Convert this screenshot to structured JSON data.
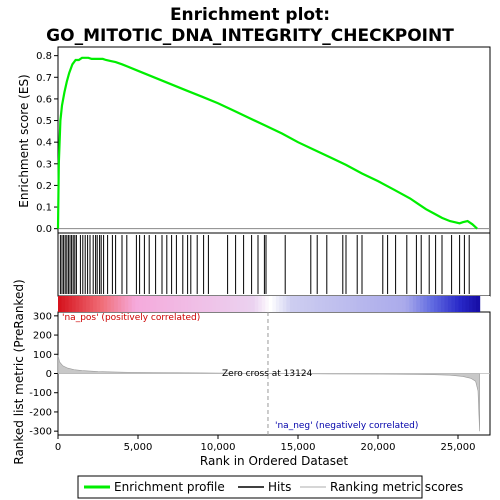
{
  "chart_data": {
    "type": "line",
    "title_line1": "Enrichment plot:",
    "title_line2": "GO_MITOTIC_DNA_INTEGRITY_CHECKPOINT",
    "ylabel_top": "Enrichment score (ES)",
    "ylabel_bottom": "Ranked list metric (PreRanked)",
    "xlabel": "Rank in Ordered Dataset",
    "xlim": [
      0,
      27000
    ],
    "x_ticks": [
      "0",
      "5,000",
      "10,000",
      "15,000",
      "20,000",
      "25,000"
    ],
    "x_tick_values": [
      0,
      5000,
      10000,
      15000,
      20000,
      25000
    ],
    "es_ylim": [
      -0.02,
      0.84
    ],
    "es_ticks": [
      "0.0",
      "0.1",
      "0.2",
      "0.3",
      "0.4",
      "0.5",
      "0.6",
      "0.7",
      "0.8"
    ],
    "es_tick_values": [
      0,
      0.1,
      0.2,
      0.3,
      0.4,
      0.5,
      0.6,
      0.7,
      0.8
    ],
    "metric_ylim": [
      -320,
      320
    ],
    "metric_ticks": [
      "300",
      "200",
      "100",
      "0",
      "-100",
      "-200",
      "-300"
    ],
    "metric_tick_values": [
      300,
      200,
      100,
      0,
      -100,
      -200,
      -300
    ],
    "series": [
      {
        "name": "Enrichment profile",
        "color": "#00ee00",
        "x": [
          0,
          50,
          150,
          250,
          400,
          550,
          700,
          900,
          1100,
          1300,
          1500,
          1700,
          1900,
          2100,
          2300,
          2500,
          2800,
          3000,
          3300,
          3600,
          4000,
          5000,
          6000,
          7000,
          8000,
          9000,
          10000,
          11000,
          12000,
          13000,
          14000,
          15000,
          16000,
          17000,
          18000,
          19000,
          20000,
          21000,
          22000,
          22500,
          23000,
          23500,
          24000,
          24500,
          24800,
          25100,
          25300,
          25600,
          25900,
          26200
        ],
        "y": [
          0.0,
          0.3,
          0.5,
          0.57,
          0.63,
          0.68,
          0.72,
          0.76,
          0.78,
          0.78,
          0.79,
          0.79,
          0.79,
          0.785,
          0.785,
          0.785,
          0.785,
          0.78,
          0.775,
          0.77,
          0.76,
          0.73,
          0.7,
          0.67,
          0.64,
          0.61,
          0.58,
          0.545,
          0.51,
          0.475,
          0.44,
          0.4,
          0.365,
          0.33,
          0.295,
          0.255,
          0.22,
          0.18,
          0.14,
          0.115,
          0.09,
          0.07,
          0.05,
          0.035,
          0.03,
          0.025,
          0.03,
          0.035,
          0.02,
          0.0
        ]
      }
    ],
    "hits": [
      150,
      250,
      350,
      450,
      550,
      650,
      750,
      850,
      950,
      1050,
      1150,
      1400,
      1550,
      1700,
      1850,
      2000,
      2200,
      2350,
      2450,
      2600,
      2700,
      2850,
      3100,
      3400,
      3600,
      4000,
      4300,
      4900,
      5100,
      5400,
      5700,
      6100,
      6500,
      6800,
      7100,
      7400,
      7800,
      8100,
      8300,
      8700,
      9100,
      9400,
      10600,
      11100,
      11600,
      12100,
      12500,
      12900,
      13000,
      14200,
      15800,
      16200,
      16800,
      17800,
      18000,
      18700,
      19000,
      20300,
      20600,
      21100,
      21800,
      22400,
      22700,
      23200,
      23600,
      24000,
      24600,
      25100,
      25400,
      25700
    ],
    "metric": {
      "x": [
        0,
        100,
        300,
        600,
        1000,
        1500,
        2500,
        4000,
        6000,
        9000,
        13124,
        17000,
        20000,
        22000,
        23500,
        24500,
        25300,
        25800,
        26100,
        26250,
        26350
      ],
      "y": [
        95,
        60,
        40,
        28,
        20,
        15,
        10,
        7,
        5,
        3,
        0,
        -2,
        -3,
        -4,
        -6,
        -9,
        -15,
        -25,
        -40,
        -90,
        -300
      ]
    },
    "annotations": {
      "na_pos": "'na_pos' (positively correlated)",
      "zero_cross": "Zero cross at 13124",
      "na_neg": "'na_neg' (negatively correlated)"
    },
    "zero_cross_rank": 13124,
    "legend": [
      "Enrichment profile",
      "Hits",
      "Ranking metric scores"
    ],
    "legend_placement": "bottom",
    "grid": false,
    "colors": {
      "profile": "#00ee00",
      "pos_label": "#cc0000",
      "neg_label": "#0000aa",
      "metric_fill": "#c8c8c8"
    }
  }
}
